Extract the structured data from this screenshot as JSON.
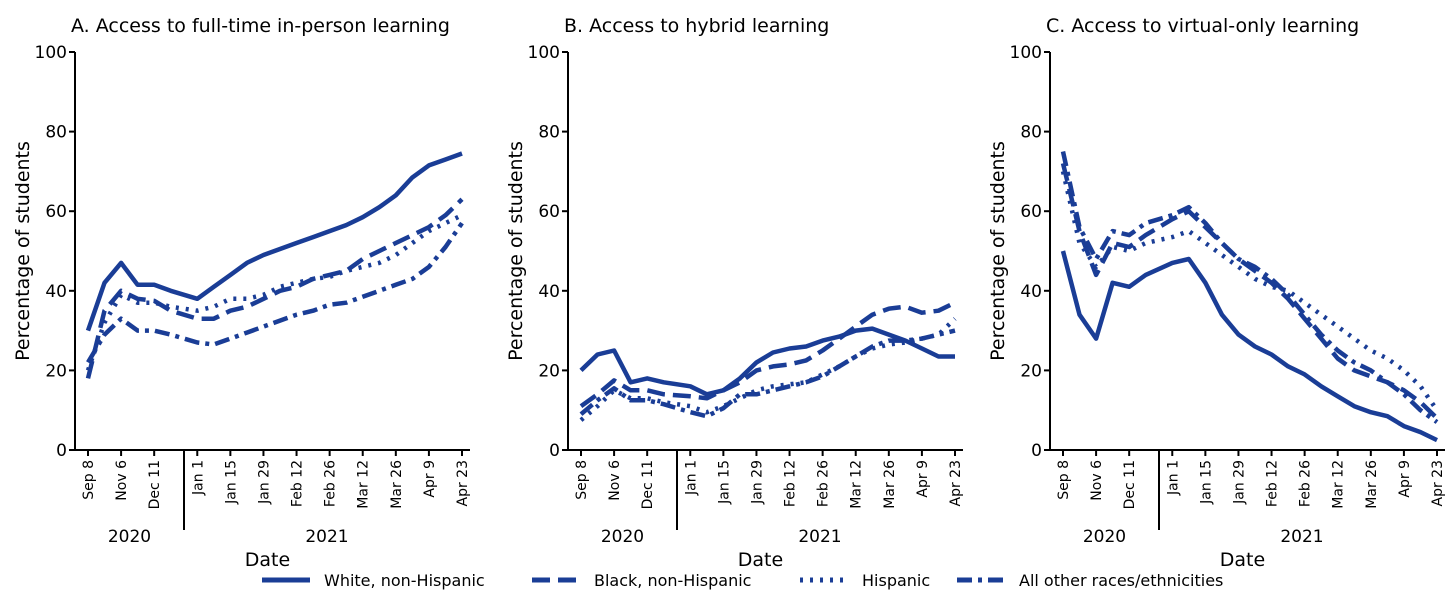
{
  "legend": [
    {
      "name": "White, non-Hispanic",
      "color": "#1a3d96",
      "dash": "none"
    },
    {
      "name": "Black, non-Hispanic",
      "color": "#1a3d96",
      "dash": "18 8"
    },
    {
      "name": "Hispanic",
      "color": "#1a3d96",
      "dash": "3 7"
    },
    {
      "name": "All other races/ethnicities",
      "color": "#1a3d96",
      "dash": "15 6 4 6"
    }
  ],
  "chart_data": [
    {
      "type": "line",
      "title": "A. Access to full-time in-person learning",
      "y_label": "Percentage of students",
      "x_label": "Date",
      "x_groups": [
        "2020",
        "2021"
      ],
      "categories": [
        "Sep 8",
        null,
        "Nov 6",
        null,
        "Dec 11",
        null,
        "Jan 1",
        null,
        "Jan 15",
        null,
        "Jan 29",
        null,
        "Feb 12",
        null,
        "Feb 26",
        null,
        "Mar 12",
        null,
        "Mar 26",
        null,
        "Apr 9",
        null,
        "Apr 23"
      ],
      "ylim": [
        0,
        100
      ],
      "yticks": [
        0,
        20,
        40,
        60,
        80,
        100
      ],
      "series": [
        {
          "values": [
            30,
            42,
            47,
            41.5,
            41.5,
            40,
            38,
            41,
            44,
            47,
            49,
            50.5,
            52,
            53.5,
            55,
            56.5,
            58.5,
            61,
            64,
            68.5,
            71.5,
            73,
            74.5
          ]
        },
        {
          "values": [
            18,
            35,
            40,
            38,
            37.5,
            35,
            33,
            33,
            35,
            36,
            38,
            40,
            41,
            43,
            44,
            45,
            48,
            50,
            52,
            54,
            56,
            59,
            63
          ]
        },
        {
          "values": [
            20,
            32,
            39,
            37,
            37,
            36,
            35,
            36,
            38,
            38,
            39,
            41,
            42,
            43,
            43.5,
            45,
            46,
            47,
            49,
            52,
            55,
            57,
            59
          ]
        },
        {
          "values": [
            22,
            29,
            33,
            30,
            30,
            29,
            27,
            26.5,
            28,
            29.5,
            31,
            32.5,
            34,
            35,
            36.5,
            37,
            38.5,
            40,
            41.5,
            43,
            46,
            51,
            57
          ]
        }
      ]
    },
    {
      "type": "line",
      "title": "B. Access to hybrid learning",
      "y_label": "Percentage of students",
      "x_label": "Date",
      "x_groups": [
        "2020",
        "2021"
      ],
      "categories": [
        "Sep 8",
        null,
        "Nov 6",
        null,
        "Dec 11",
        null,
        "Jan 1",
        null,
        "Jan 15",
        null,
        "Jan 29",
        null,
        "Feb 12",
        null,
        "Feb 26",
        null,
        "Mar 12",
        null,
        "Mar 26",
        null,
        "Apr 9",
        null,
        "Apr 23"
      ],
      "ylim": [
        0,
        100
      ],
      "yticks": [
        0,
        20,
        40,
        60,
        80,
        100
      ],
      "series": [
        {
          "values": [
            20,
            24,
            25,
            17,
            18,
            17,
            16,
            14,
            15,
            18,
            22,
            24.5,
            25.5,
            26,
            27.5,
            28.5,
            30,
            30.5,
            29,
            27.5,
            25.5,
            23.5,
            23.5
          ]
        },
        {
          "values": [
            11,
            14,
            17.5,
            15,
            15,
            14,
            13.5,
            13,
            15,
            17,
            20,
            21,
            21.5,
            22.5,
            25,
            28,
            31,
            34,
            35.5,
            36,
            34.5,
            35,
            37
          ]
        },
        {
          "values": [
            7.5,
            11,
            15,
            13,
            13,
            12,
            11,
            9.5,
            11,
            13,
            15,
            16,
            16.5,
            17,
            19,
            21,
            23.5,
            25.5,
            26.5,
            27,
            28,
            29,
            33
          ]
        },
        {
          "values": [
            9,
            12.5,
            15.5,
            12.5,
            12.5,
            11.5,
            9.5,
            8.5,
            10.5,
            14,
            14,
            15,
            16,
            17,
            18.5,
            21,
            23.5,
            26,
            27.5,
            27.5,
            28,
            29,
            30
          ]
        }
      ]
    },
    {
      "type": "line",
      "title": "C. Access to virtual-only learning",
      "y_label": "Percentage of students",
      "x_label": "Date",
      "x_groups": [
        "2020",
        "2021"
      ],
      "categories": [
        "Sep 8",
        null,
        "Nov 6",
        null,
        "Dec 11",
        null,
        "Jan 1",
        null,
        "Jan 15",
        null,
        "Jan 29",
        null,
        "Feb 12",
        null,
        "Feb 26",
        null,
        "Mar 12",
        null,
        "Mar 26",
        null,
        "Apr 9",
        null,
        "Apr 23"
      ],
      "ylim": [
        0,
        100
      ],
      "yticks": [
        0,
        20,
        40,
        60,
        80,
        100
      ],
      "series": [
        {
          "values": [
            50,
            34,
            28,
            42,
            41,
            44,
            47,
            48,
            42,
            34,
            29,
            26,
            24,
            21,
            19,
            16,
            13.5,
            11,
            9.5,
            8.5,
            6,
            4.5,
            2.5
          ]
        },
        {
          "values": [
            72,
            55,
            44,
            52,
            51,
            54,
            58,
            60,
            56,
            52,
            48,
            45,
            42,
            38,
            33,
            28,
            23,
            20,
            18.5,
            17,
            15,
            12,
            8
          ]
        },
        {
          "values": [
            70,
            52,
            46,
            51,
            50,
            52,
            53.5,
            55,
            52,
            49,
            46,
            43,
            41,
            40,
            37,
            34,
            31,
            28,
            25,
            23,
            20,
            16,
            10
          ]
        },
        {
          "values": [
            75,
            56,
            48,
            55,
            54,
            57,
            59,
            61,
            57,
            52,
            48,
            46,
            43,
            39,
            34,
            29,
            25,
            22,
            20,
            17,
            14,
            10,
            7
          ]
        }
      ]
    }
  ]
}
